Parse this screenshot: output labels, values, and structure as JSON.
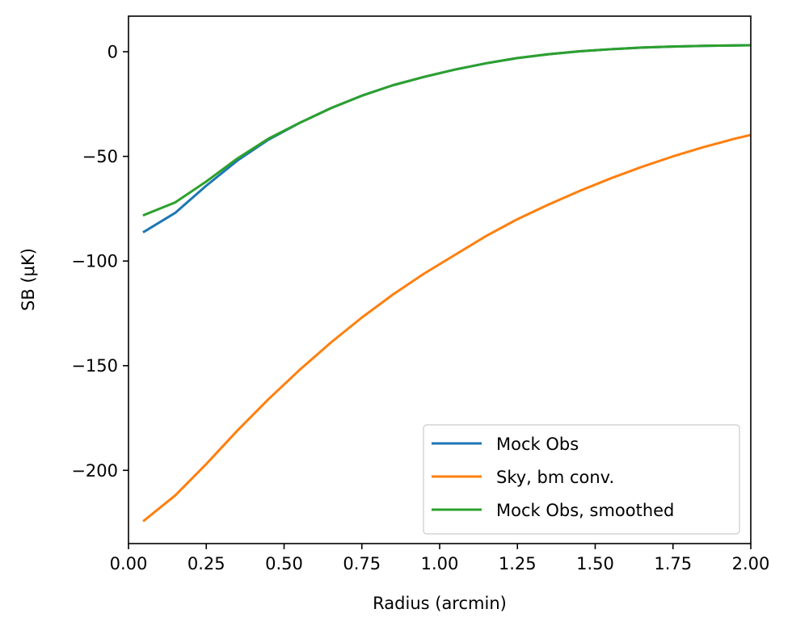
{
  "chart_data": {
    "type": "line",
    "title": "",
    "xlabel": "Radius (arcmin)",
    "ylabel": "SB (μK)",
    "xlim": [
      0.0,
      2.0
    ],
    "ylim": [
      -235,
      17
    ],
    "xticks": [
      0.0,
      0.25,
      0.5,
      0.75,
      1.0,
      1.25,
      1.5,
      1.75,
      2.0
    ],
    "xtick_labels": [
      "0.00",
      "0.25",
      "0.50",
      "0.75",
      "1.00",
      "1.25",
      "1.50",
      "1.75",
      "2.00"
    ],
    "yticks": [
      0,
      -50,
      -100,
      -150,
      -200
    ],
    "ytick_labels": [
      "0",
      "−50",
      "−100",
      "−150",
      "−200"
    ],
    "grid": false,
    "legend_position": "lower-right",
    "series": [
      {
        "name": "Mock Obs",
        "color": "#1f77b4",
        "x": [
          0.05,
          0.15,
          0.25,
          0.35,
          0.45,
          0.55,
          0.65,
          0.75,
          0.85,
          0.95,
          1.05,
          1.15,
          1.25,
          1.35,
          1.45,
          1.55,
          1.65,
          1.75,
          1.85,
          1.95,
          2.05
        ],
        "y": [
          -86,
          -77,
          -64,
          -52,
          -42,
          -34,
          -27,
          -21,
          -16,
          -12,
          -8.5,
          -5.5,
          -3,
          -1.2,
          0.2,
          1.2,
          2.0,
          2.5,
          2.8,
          3.0,
          3.2
        ]
      },
      {
        "name": "Sky, bm conv.",
        "color": "#ff7f0e",
        "x": [
          0.05,
          0.15,
          0.25,
          0.35,
          0.45,
          0.55,
          0.65,
          0.75,
          0.85,
          0.95,
          1.05,
          1.15,
          1.25,
          1.35,
          1.45,
          1.55,
          1.65,
          1.75,
          1.85,
          1.95,
          2.05
        ],
        "y": [
          -224,
          -212,
          -197,
          -181,
          -166,
          -152,
          -139,
          -127,
          -116,
          -106,
          -97,
          -88,
          -80,
          -73,
          -66.5,
          -60.5,
          -55,
          -50,
          -45.5,
          -41.5,
          -38
        ]
      },
      {
        "name": "Mock Obs, smoothed",
        "color": "#2ca02c",
        "x": [
          0.05,
          0.15,
          0.25,
          0.35,
          0.45,
          0.55,
          0.65,
          0.75,
          0.85,
          0.95,
          1.05,
          1.15,
          1.25,
          1.35,
          1.45,
          1.55,
          1.65,
          1.75,
          1.85,
          1.95,
          2.05
        ],
        "y": [
          -78,
          -72,
          -62,
          -51,
          -41.5,
          -34,
          -27,
          -21,
          -16,
          -12,
          -8.5,
          -5.5,
          -3,
          -1.2,
          0.2,
          1.2,
          2.0,
          2.5,
          2.8,
          3.0,
          3.2
        ]
      }
    ]
  }
}
